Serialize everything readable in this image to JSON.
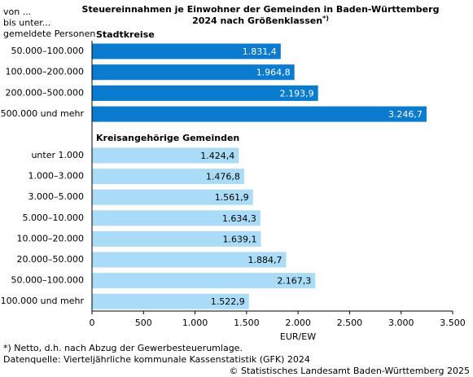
{
  "chart_data": {
    "type": "bar",
    "orientation": "horizontal",
    "title": [
      "Steuereinnahmen je Einwohner der Gemeinden in Baden-Württemberg",
      "2024 nach Größenklassen"
    ],
    "title_note": "*)",
    "category_header": [
      "von ...",
      "bis unter...",
      "gemeldete Personen"
    ],
    "groups": [
      {
        "name": "Stadtkreise",
        "color": "#0b7bd0",
        "label_color": "#ffffff",
        "categories": [
          "50.000–100.000",
          "100.000–200.000",
          "200.000–500.000",
          "500.000 und mehr"
        ],
        "values": [
          1831.4,
          1964.8,
          2193.9,
          3246.7
        ],
        "value_labels": [
          "1.831,4",
          "1.964,8",
          "2.193,9",
          "3.246,7"
        ]
      },
      {
        "name": "Kreisangehörige Gemeinden",
        "color": "#aadcf7",
        "label_color": "#000000",
        "categories": [
          "unter 1.000",
          "1.000–3.000",
          "3.000–5.000",
          "5.000–10.000",
          "10.000–20.000",
          "20.000–50.000",
          "50.000–100.000",
          "100.000 und mehr"
        ],
        "values": [
          1424.4,
          1476.8,
          1561.9,
          1634.3,
          1639.1,
          1884.7,
          2167.3,
          1522.9
        ],
        "value_labels": [
          "1.424,4",
          "1.476,8",
          "1.561,9",
          "1.634,3",
          "1.639,1",
          "1.884,7",
          "2.167,3",
          "1.522,9"
        ]
      }
    ],
    "xlabel": "EUR/EW",
    "xlim": [
      0,
      3500
    ],
    "xticks": [
      0,
      500,
      {
        "value": 1000,
        "label": "1.000"
      },
      {
        "value": 1500,
        "label": "1.500"
      },
      {
        "value": 2000,
        "label": "2.000"
      },
      {
        "value": 2500,
        "label": "2.500"
      },
      {
        "value": 3000,
        "label": "3.000"
      },
      {
        "value": 3500,
        "label": "3.500"
      }
    ],
    "footnotes": [
      "*) Netto, d.h. nach Abzug der Gewerbesteuerumlage.",
      "Datenquelle: Vierteljährliche kommunale Kassenstatistik (GFK) 2024"
    ],
    "copyright": "© Statistisches Landesamt Baden-Württemberg 2025"
  }
}
